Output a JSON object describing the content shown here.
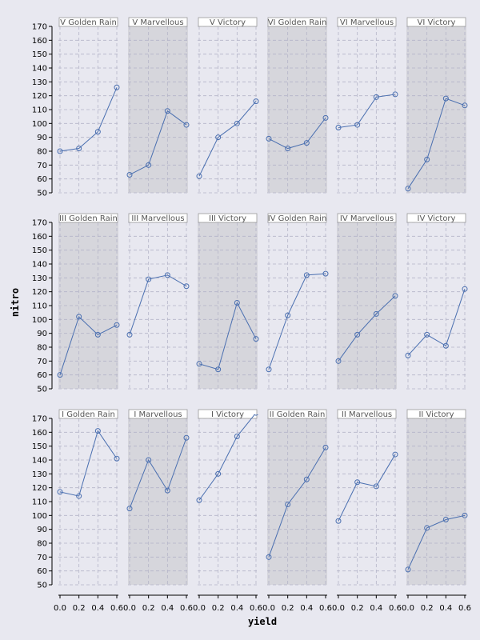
{
  "chart_data": {
    "type": "line",
    "xlabel": "yield",
    "ylabel": "nitro",
    "xlim": [
      0,
      0.6
    ],
    "ylim": [
      50,
      170
    ],
    "x": [
      0.0,
      0.2,
      0.4,
      0.6
    ],
    "xticks": [
      "0.0",
      "0.2",
      "0.4",
      "0.6"
    ],
    "yticks": [
      "50",
      "60",
      "70",
      "80",
      "90",
      "100",
      "110",
      "120",
      "130",
      "140",
      "150",
      "160",
      "170"
    ],
    "grid": true,
    "panels": [
      {
        "label": "V Golden Rain",
        "row": 0,
        "col": 0,
        "shaded": false,
        "values": [
          80,
          82,
          94,
          126
        ]
      },
      {
        "label": "V Marvellous",
        "row": 0,
        "col": 1,
        "shaded": true,
        "values": [
          63,
          70,
          109,
          99
        ]
      },
      {
        "label": "V Victory",
        "row": 0,
        "col": 2,
        "shaded": false,
        "values": [
          62,
          90,
          100,
          116
        ]
      },
      {
        "label": "VI Golden Rain",
        "row": 0,
        "col": 3,
        "shaded": true,
        "values": [
          89,
          82,
          86,
          104
        ]
      },
      {
        "label": "VI Marvellous",
        "row": 0,
        "col": 4,
        "shaded": false,
        "values": [
          97,
          99,
          119,
          121
        ]
      },
      {
        "label": "VI Victory",
        "row": 0,
        "col": 5,
        "shaded": true,
        "values": [
          53,
          74,
          118,
          113
        ]
      },
      {
        "label": "III Golden Rain",
        "row": 1,
        "col": 0,
        "shaded": true,
        "values": [
          60,
          102,
          89,
          96
        ]
      },
      {
        "label": "III Marvellous",
        "row": 1,
        "col": 1,
        "shaded": false,
        "values": [
          89,
          129,
          132,
          124
        ]
      },
      {
        "label": "III Victory",
        "row": 1,
        "col": 2,
        "shaded": true,
        "values": [
          68,
          64,
          112,
          86
        ]
      },
      {
        "label": "IV Golden Rain",
        "row": 1,
        "col": 3,
        "shaded": false,
        "values": [
          64,
          103,
          132,
          133
        ]
      },
      {
        "label": "IV Marvellous",
        "row": 1,
        "col": 4,
        "shaded": true,
        "values": [
          70,
          89,
          104,
          117
        ]
      },
      {
        "label": "IV Victory",
        "row": 1,
        "col": 5,
        "shaded": false,
        "values": [
          74,
          89,
          81,
          122
        ]
      },
      {
        "label": "I Golden Rain",
        "row": 2,
        "col": 0,
        "shaded": false,
        "values": [
          117,
          114,
          161,
          141
        ]
      },
      {
        "label": "I Marvellous",
        "row": 2,
        "col": 1,
        "shaded": true,
        "values": [
          105,
          140,
          118,
          156
        ]
      },
      {
        "label": "I Victory",
        "row": 2,
        "col": 2,
        "shaded": false,
        "values": [
          111,
          130,
          157,
          174
        ]
      },
      {
        "label": "II Golden Rain",
        "row": 2,
        "col": 3,
        "shaded": true,
        "values": [
          70,
          108,
          126,
          149
        ]
      },
      {
        "label": "II Marvellous",
        "row": 2,
        "col": 4,
        "shaded": false,
        "values": [
          96,
          124,
          121,
          144
        ]
      },
      {
        "label": "II Victory",
        "row": 2,
        "col": 5,
        "shaded": true,
        "values": [
          61,
          91,
          97,
          100
        ]
      }
    ],
    "colors": {
      "page_background": "#e8e8f0",
      "panel_plain": "#e8e8f0",
      "panel_shaded": "#d6d6dc",
      "line": "#4a6fb0",
      "grid": "#b4b4c8",
      "strip_background": "#ffffff",
      "strip_border": "#999999"
    }
  }
}
